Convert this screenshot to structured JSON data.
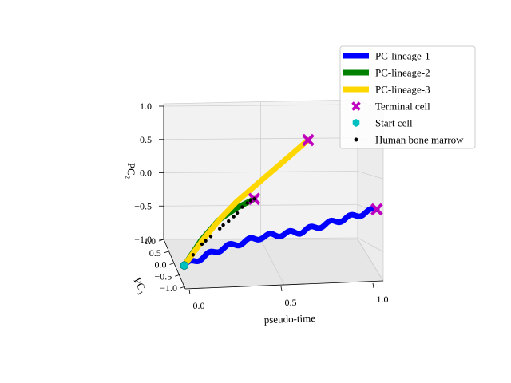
{
  "chart_data": {
    "type": "line",
    "projection": "3d",
    "xlabel": "pseudo-time",
    "ylabel": "PC$_1$",
    "zlabel": "PC$_2$",
    "xlabel_display": "pseudo-time",
    "ylabel_display": "PC",
    "ylabel_sub": "1",
    "zlabel_display": "PC",
    "zlabel_sub": "2",
    "xlim": [
      0.0,
      1.0
    ],
    "ylim": [
      -1.0,
      1.0
    ],
    "zlim": [
      -1.0,
      1.0
    ],
    "xticks": [
      "0.0",
      "0.5",
      "1.0"
    ],
    "yticks": [
      "−1.0",
      "−0.5",
      "0.0",
      "0.5",
      "1.0"
    ],
    "zticks": [
      "−1.0",
      "−0.5",
      "0.0",
      "0.5",
      "1.0"
    ],
    "grid": true,
    "legend_position": "top-right",
    "series": [
      {
        "name": "PC-lineage-1",
        "color": "#0000ff",
        "style": "line",
        "points": [
          {
            "t": 0.0,
            "pc1": -0.5,
            "pc2": -0.85
          },
          {
            "t": 0.1,
            "pc1": -0.55,
            "pc2": -0.7
          },
          {
            "t": 0.2,
            "pc1": -0.6,
            "pc2": -0.55
          },
          {
            "t": 0.3,
            "pc1": -0.65,
            "pc2": -0.45
          },
          {
            "t": 0.4,
            "pc1": -0.7,
            "pc2": -0.35
          },
          {
            "t": 0.5,
            "pc1": -0.75,
            "pc2": -0.3
          },
          {
            "t": 0.6,
            "pc1": -0.8,
            "pc2": -0.25
          },
          {
            "t": 0.7,
            "pc1": -0.85,
            "pc2": -0.15
          },
          {
            "t": 0.8,
            "pc1": -0.9,
            "pc2": -0.05
          },
          {
            "t": 0.9,
            "pc1": -0.95,
            "pc2": 0.05
          },
          {
            "t": 1.0,
            "pc1": -1.0,
            "pc2": 0.15
          }
        ]
      },
      {
        "name": "PC-lineage-2",
        "color": "#008000",
        "style": "line",
        "points": [
          {
            "t": 0.0,
            "pc1": -0.5,
            "pc2": -0.85
          },
          {
            "t": 0.1,
            "pc1": -0.35,
            "pc2": -0.5
          },
          {
            "t": 0.2,
            "pc1": -0.2,
            "pc2": -0.25
          },
          {
            "t": 0.3,
            "pc1": -0.1,
            "pc2": -0.1
          },
          {
            "t": 0.4,
            "pc1": 0.0,
            "pc2": 0.0
          }
        ]
      },
      {
        "name": "PC-lineage-3",
        "color": "#ffd700",
        "style": "line",
        "points": [
          {
            "t": 0.0,
            "pc1": -0.5,
            "pc2": -0.85
          },
          {
            "t": 0.1,
            "pc1": -0.4,
            "pc2": -0.5
          },
          {
            "t": 0.2,
            "pc1": -0.3,
            "pc2": -0.2
          },
          {
            "t": 0.3,
            "pc1": -0.2,
            "pc2": 0.05
          },
          {
            "t": 0.4,
            "pc1": -0.1,
            "pc2": 0.25
          },
          {
            "t": 0.5,
            "pc1": 0.0,
            "pc2": 0.45
          },
          {
            "t": 0.6,
            "pc1": 0.1,
            "pc2": 0.65
          },
          {
            "t": 0.7,
            "pc1": 0.2,
            "pc2": 0.85
          }
        ]
      },
      {
        "name": "Terminal cell",
        "color": "#bf00bf",
        "style": "marker-x",
        "points": [
          {
            "t": 1.0,
            "pc1": -1.0,
            "pc2": 0.15
          },
          {
            "t": 0.4,
            "pc1": 0.0,
            "pc2": 0.0
          },
          {
            "t": 0.7,
            "pc1": 0.2,
            "pc2": 0.85
          }
        ]
      },
      {
        "name": "Start cell",
        "color": "#00bfbf",
        "style": "marker-hexagon",
        "points": [
          {
            "t": 0.0,
            "pc1": -0.5,
            "pc2": -0.85
          }
        ]
      },
      {
        "name": "Human bone marrow",
        "color": "#000000",
        "style": "marker-dot",
        "points": []
      }
    ]
  }
}
